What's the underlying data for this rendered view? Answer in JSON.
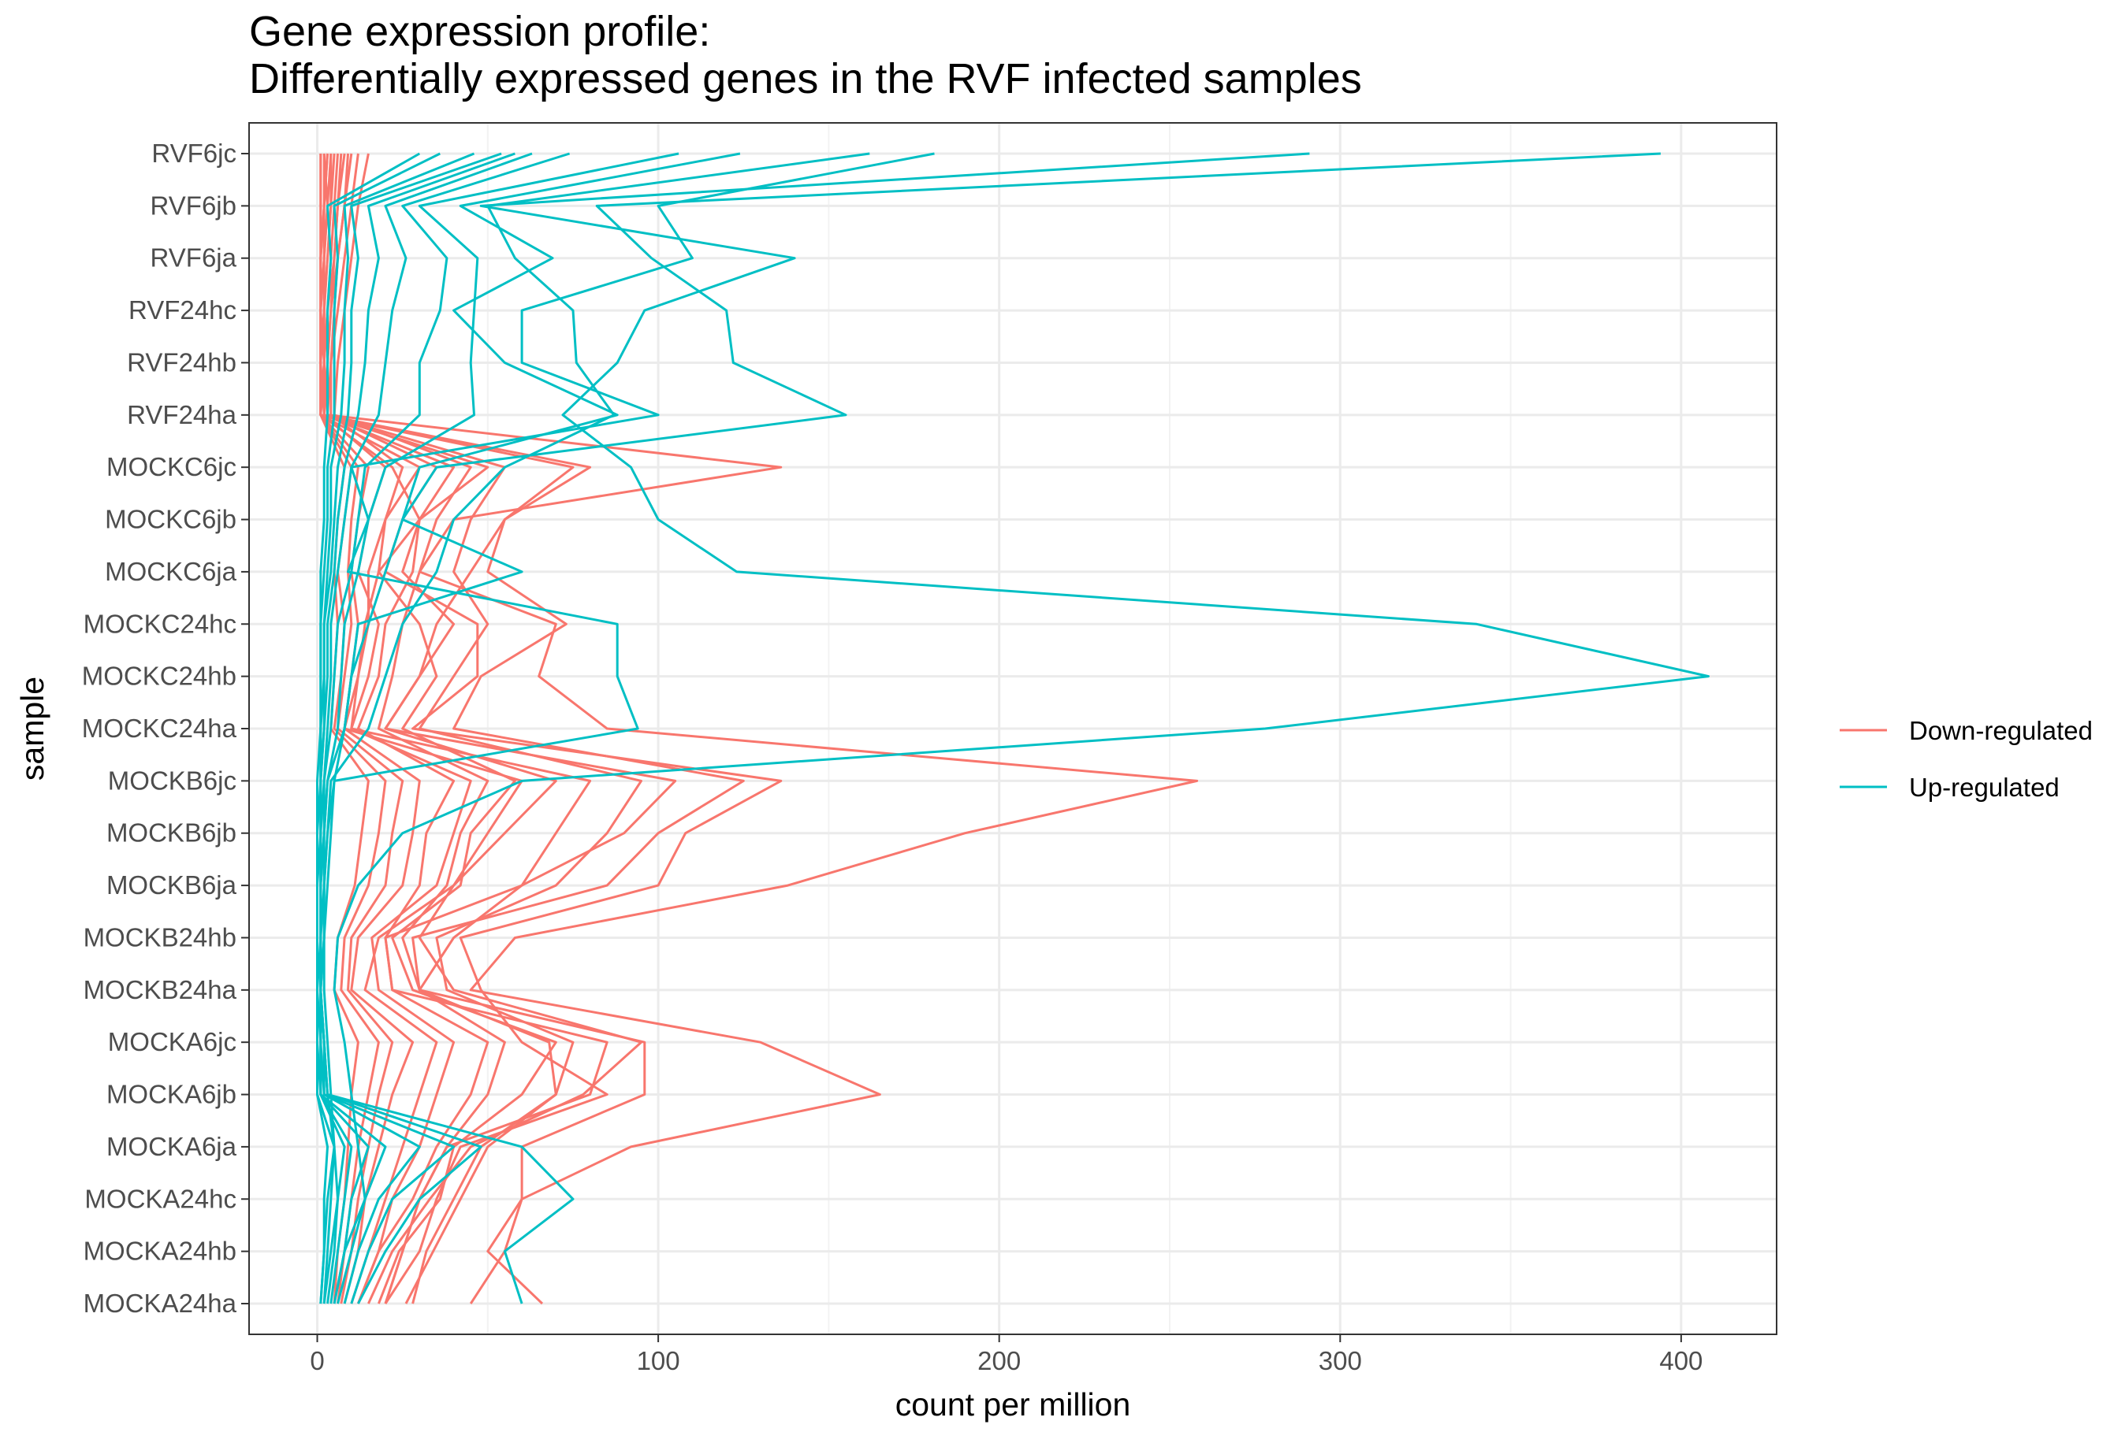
{
  "chart_data": {
    "type": "line",
    "title": [
      "Gene expression profile:",
      "Differentially expressed genes in the RVF infected samples"
    ],
    "xlabel": "count per million",
    "ylabel": "sample",
    "xlim": [
      -20,
      428
    ],
    "x_ticks": [
      0,
      100,
      200,
      300,
      400
    ],
    "x_tick_labels": [
      "0",
      "100",
      "200",
      "300",
      "400"
    ],
    "grid": true,
    "legend_position": "right",
    "samples": [
      "RVF6jc",
      "RVF6jb",
      "RVF6ja",
      "RVF24hc",
      "RVF24hb",
      "RVF24ha",
      "MOCKC6jc",
      "MOCKC6jb",
      "MOCKC6ja",
      "MOCKC24hc",
      "MOCKC24hb",
      "MOCKC24ha",
      "MOCKB6jc",
      "MOCKB6jb",
      "MOCKB6ja",
      "MOCKB24hb",
      "MOCKB24ha",
      "MOCKA6jc",
      "MOCKA6jb",
      "MOCKA6ja",
      "MOCKA24hc",
      "MOCKA24hb",
      "MOCKA24ha"
    ],
    "series": [
      {
        "name": "Down-regulated",
        "color": "#F8766D",
        "genes": [
          [
            3,
            2,
            1,
            1,
            2,
            1,
            22,
            30,
            18,
            14,
            12,
            10,
            80,
            70,
            60,
            40,
            30,
            96,
            96,
            60,
            60,
            50,
            66
          ],
          [
            5,
            4,
            3,
            2,
            2,
            3,
            136,
            40,
            30,
            70,
            65,
            85,
            258,
            190,
            138,
            58,
            45,
            130,
            165,
            92,
            60,
            55,
            45
          ],
          [
            10,
            8,
            6,
            4,
            3,
            2,
            80,
            55,
            50,
            73,
            48,
            40,
            125,
            100,
            85,
            28,
            30,
            68,
            70,
            48,
            40,
            32,
            28
          ],
          [
            2,
            3,
            2,
            1,
            1,
            2,
            50,
            30,
            25,
            40,
            30,
            20,
            105,
            90,
            60,
            20,
            22,
            85,
            80,
            38,
            30,
            25,
            20
          ],
          [
            8,
            6,
            5,
            4,
            3,
            3,
            35,
            25,
            20,
            47,
            47,
            28,
            136,
            108,
            100,
            42,
            48,
            60,
            85,
            42,
            35,
            30,
            20
          ],
          [
            4,
            3,
            2,
            2,
            1,
            1,
            75,
            55,
            45,
            35,
            30,
            20,
            70,
            55,
            40,
            30,
            40,
            95,
            78,
            45,
            33,
            22,
            15
          ],
          [
            6,
            5,
            4,
            3,
            2,
            2,
            40,
            30,
            28,
            20,
            18,
            12,
            40,
            32,
            30,
            20,
            22,
            50,
            45,
            35,
            28,
            18,
            12
          ],
          [
            1,
            1,
            1,
            1,
            1,
            1,
            30,
            20,
            15,
            15,
            12,
            8,
            60,
            50,
            40,
            18,
            14,
            35,
            30,
            25,
            20,
            15,
            10
          ],
          [
            12,
            10,
            8,
            6,
            4,
            4,
            25,
            20,
            18,
            30,
            35,
            25,
            58,
            45,
            42,
            22,
            28,
            70,
            60,
            40,
            36,
            24,
            18
          ],
          [
            3,
            2,
            2,
            1,
            1,
            1,
            15,
            12,
            10,
            12,
            10,
            8,
            30,
            28,
            25,
            12,
            10,
            28,
            22,
            18,
            14,
            12,
            8
          ],
          [
            7,
            6,
            5,
            3,
            2,
            2,
            20,
            15,
            12,
            18,
            15,
            10,
            45,
            40,
            35,
            16,
            18,
            40,
            35,
            30,
            22,
            18,
            12
          ],
          [
            2,
            2,
            1,
            1,
            1,
            1,
            10,
            8,
            6,
            8,
            7,
            5,
            20,
            18,
            15,
            8,
            7,
            18,
            15,
            12,
            10,
            8,
            6
          ],
          [
            9,
            8,
            6,
            5,
            4,
            3,
            55,
            45,
            40,
            50,
            40,
            30,
            95,
            85,
            70,
            35,
            38,
            75,
            70,
            50,
            42,
            34,
            26
          ],
          [
            4,
            4,
            3,
            2,
            2,
            1,
            12,
            10,
            9,
            10,
            8,
            6,
            25,
            22,
            20,
            10,
            9,
            22,
            18,
            15,
            12,
            10,
            7
          ],
          [
            15,
            12,
            10,
            8,
            6,
            5,
            45,
            35,
            30,
            25,
            22,
            18,
            50,
            42,
            38,
            25,
            30,
            55,
            50,
            38,
            30,
            25,
            20
          ],
          [
            1,
            1,
            1,
            1,
            1,
            1,
            8,
            6,
            5,
            6,
            5,
            4,
            15,
            13,
            11,
            6,
            5,
            12,
            10,
            9,
            8,
            6,
            5
          ]
        ]
      },
      {
        "name": "Up-regulated",
        "color": "#00BFC4",
        "genes": [
          [
            394,
            82,
            98,
            120,
            122,
            155,
            35,
            25,
            20,
            15,
            10,
            8,
            5,
            4,
            3,
            2,
            2,
            3,
            4,
            5,
            6,
            4,
            2
          ],
          [
            291,
            48,
            140,
            96,
            88,
            72,
            92,
            100,
            123,
            340,
            408,
            278,
            60,
            25,
            12,
            6,
            5,
            8,
            10,
            12,
            14,
            8,
            5
          ],
          [
            181,
            100,
            110,
            60,
            60,
            100,
            10,
            15,
            9,
            88,
            88,
            94,
            5,
            3,
            2,
            2,
            1,
            2,
            3,
            5,
            3,
            2,
            1
          ],
          [
            162,
            50,
            58,
            75,
            76,
            87,
            55,
            40,
            35,
            25,
            20,
            15,
            4,
            3,
            2,
            2,
            1,
            2,
            3,
            60,
            75,
            55,
            60
          ],
          [
            124,
            42,
            69,
            40,
            55,
            88,
            30,
            25,
            60,
            12,
            10,
            8,
            3,
            2,
            2,
            1,
            1,
            2,
            3,
            48,
            30,
            20,
            12
          ],
          [
            106,
            30,
            47,
            46,
            45,
            46,
            20,
            15,
            12,
            8,
            7,
            6,
            3,
            2,
            1,
            1,
            1,
            2,
            2,
            40,
            22,
            15,
            10
          ],
          [
            74,
            25,
            38,
            36,
            30,
            30,
            14,
            12,
            10,
            6,
            5,
            4,
            2,
            2,
            1,
            1,
            1,
            1,
            2,
            30,
            18,
            12,
            8
          ],
          [
            63,
            20,
            26,
            22,
            20,
            18,
            10,
            8,
            6,
            4,
            4,
            3,
            2,
            1,
            1,
            1,
            1,
            1,
            1,
            20,
            14,
            10,
            6
          ],
          [
            58,
            15,
            18,
            15,
            14,
            12,
            8,
            6,
            5,
            3,
            3,
            2,
            1,
            1,
            1,
            1,
            1,
            1,
            1,
            15,
            10,
            8,
            5
          ],
          [
            54,
            10,
            12,
            10,
            10,
            9,
            6,
            5,
            4,
            2,
            2,
            2,
            1,
            1,
            1,
            1,
            0,
            1,
            1,
            10,
            8,
            6,
            4
          ],
          [
            46,
            8,
            9,
            8,
            8,
            7,
            4,
            4,
            3,
            2,
            2,
            1,
            1,
            1,
            0,
            0,
            0,
            0,
            1,
            8,
            6,
            5,
            3
          ],
          [
            36,
            5,
            6,
            5,
            5,
            5,
            3,
            3,
            2,
            1,
            1,
            1,
            1,
            0,
            0,
            0,
            0,
            0,
            0,
            5,
            4,
            3,
            2
          ],
          [
            30,
            3,
            4,
            3,
            3,
            3,
            2,
            2,
            1,
            1,
            1,
            1,
            0,
            0,
            0,
            0,
            0,
            0,
            0,
            3,
            2,
            2,
            1
          ]
        ]
      }
    ]
  }
}
